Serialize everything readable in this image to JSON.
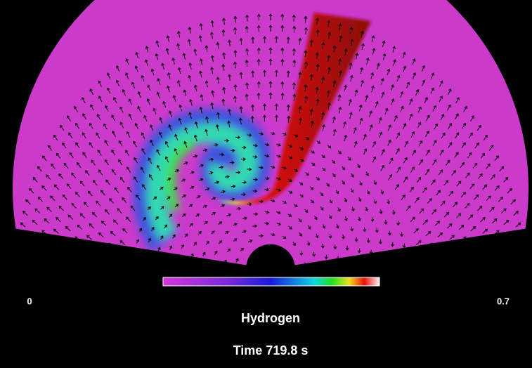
{
  "colorbar": {
    "min_label": "0",
    "max_label": "0.7",
    "title": "Hydrogen"
  },
  "time": "Time 719.8 s"
}
